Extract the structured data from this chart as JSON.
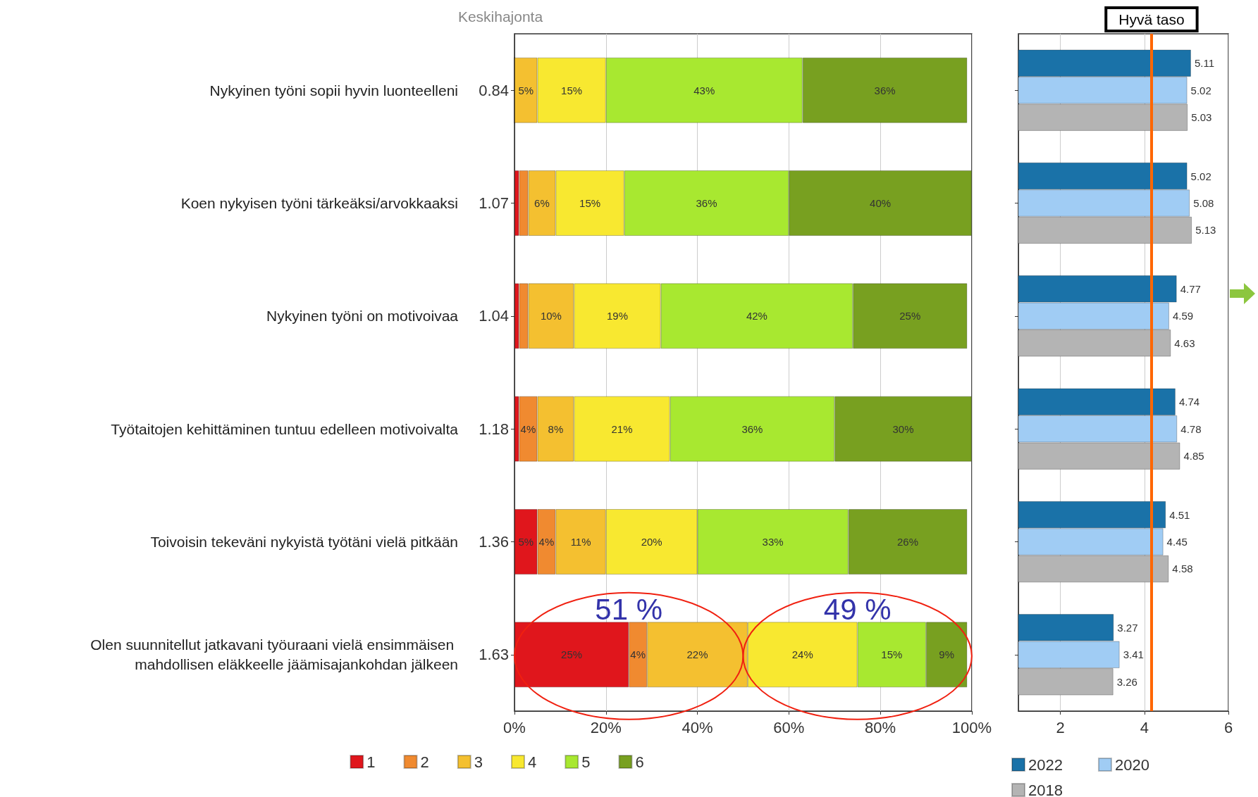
{
  "chart_data": [
    {
      "type": "bar",
      "orientation": "horizontal",
      "stacked": true,
      "categories": [
        "Nykyinen työni sopii hyvin luonteelleni",
        "Koen nykyisen työni tärkeäksi/arvokkaaksi",
        "Nykyinen työni on motivoivaa",
        "Työtaitojen kehittäminen tuntuu edelleen motivoivalta",
        "Toivoisin tekeväni nykyistä työtäni vielä pitkään",
        "Olen suunnitellut jatkavani työuraani vielä ensimmäisen mahdollisen eläkkeelle jäämisajankohdan jälkeen"
      ],
      "y2_categories": [
        "0.84",
        "1.07",
        "1.04",
        "1.18",
        "1.36",
        "1.63"
      ],
      "y2label": "Keskihajonta",
      "series": [
        {
          "name": "1",
          "color": "#e0161c",
          "values": [
            0,
            1,
            1,
            1,
            5,
            25
          ],
          "value_labels": [
            null,
            null,
            null,
            null,
            "5%",
            "25%"
          ]
        },
        {
          "name": "2",
          "color": "#f08a30",
          "values": [
            0,
            2,
            2,
            4,
            4,
            4
          ],
          "value_labels": [
            null,
            null,
            null,
            "4%",
            "4%",
            "4%"
          ]
        },
        {
          "name": "3",
          "color": "#f4c030",
          "values": [
            5,
            6,
            10,
            8,
            11,
            22
          ],
          "value_labels": [
            "5%",
            "6%",
            "10%",
            "8%",
            "11%",
            "22%"
          ]
        },
        {
          "name": "4",
          "color": "#f8e830",
          "values": [
            15,
            15,
            19,
            21,
            20,
            24
          ],
          "value_labels": [
            "15%",
            "15%",
            "19%",
            "21%",
            "20%",
            "24%"
          ]
        },
        {
          "name": "5",
          "color": "#a8e830",
          "values": [
            43,
            36,
            42,
            36,
            33,
            15
          ],
          "value_labels": [
            "43%",
            "36%",
            "42%",
            "36%",
            "33%",
            "15%"
          ]
        },
        {
          "name": "6",
          "color": "#78a020",
          "values": [
            36,
            40,
            25,
            30,
            26,
            9
          ],
          "value_labels": [
            "36%",
            "40%",
            "25%",
            "30%",
            "26%",
            "9%"
          ]
        }
      ],
      "xlim": [
        0,
        100
      ],
      "xticks": [
        {
          "value": 0,
          "label": "0%"
        },
        {
          "value": 20,
          "label": "20%"
        },
        {
          "value": 40,
          "label": "40%"
        },
        {
          "value": 60,
          "label": "60%"
        },
        {
          "value": 80,
          "label": "80%"
        },
        {
          "value": 100,
          "label": "100%"
        }
      ],
      "grid": "x",
      "legend": "bottom",
      "annotations": [
        "51 %",
        "49 %"
      ]
    },
    {
      "type": "bar",
      "orientation": "horizontal",
      "categories": [
        null,
        null,
        null,
        null,
        null,
        null
      ],
      "series": [
        {
          "name": "2022",
          "color": "#1a72a8",
          "values": [
            5.11,
            5.02,
            4.77,
            4.74,
            4.51,
            3.27
          ]
        },
        {
          "name": "2020",
          "color": "#a0ccf4",
          "values": [
            5.02,
            5.08,
            4.59,
            4.78,
            4.45,
            3.41
          ]
        },
        {
          "name": "2018",
          "color": "#b4b4b4",
          "values": [
            5.03,
            5.13,
            4.63,
            4.85,
            4.58,
            3.26
          ]
        }
      ],
      "xlim": [
        1,
        6
      ],
      "xticks": [
        2,
        4,
        6
      ],
      "grid": "x",
      "legend": "bottom",
      "data_labels": true,
      "ref_lines": [
        {
          "axis": "x",
          "value": 4.17,
          "label": "Hyvä taso",
          "color": "#ff6600"
        }
      ]
    }
  ]
}
